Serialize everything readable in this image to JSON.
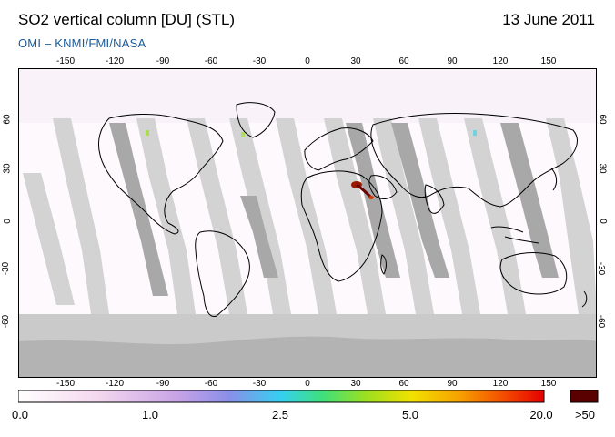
{
  "header": {
    "title": "SO2 vertical column [DU] (STL)",
    "date": "13 June 2011",
    "subtitle": "OMI  –  KNMI/FMI/NASA"
  },
  "map": {
    "projection": "equirectangular",
    "lon_range": [
      -180,
      180
    ],
    "lat_range": [
      -90,
      90
    ],
    "x_ticks": [
      "-150",
      "-120",
      "-90",
      "-60",
      "-30",
      "0",
      "30",
      "60",
      "90",
      "120",
      "150"
    ],
    "y_ticks": [
      "60",
      "30",
      "0",
      "-30",
      "-60"
    ],
    "colors": {
      "swath_light": "#cfcfcf",
      "swath_dark": "#999999",
      "no_data": "#c8c8c8",
      "coast": "#000000"
    },
    "so2_plume": {
      "region": "Eritrea / Nabro volcano",
      "lon": 42,
      "lat": 13,
      "max_value_class": ">50"
    }
  },
  "colorbar": {
    "labels": [
      "0.0",
      "1.0",
      "2.5",
      "5.0",
      "20.0",
      ">50"
    ],
    "colors": [
      "#ffffff",
      "#f4d8ee",
      "#c9a4e6",
      "#8b8ee9",
      "#34d0f0",
      "#3fe07a",
      "#9be020",
      "#f2e000",
      "#f7a000",
      "#f35000",
      "#e60000",
      "#5a0000"
    ]
  }
}
